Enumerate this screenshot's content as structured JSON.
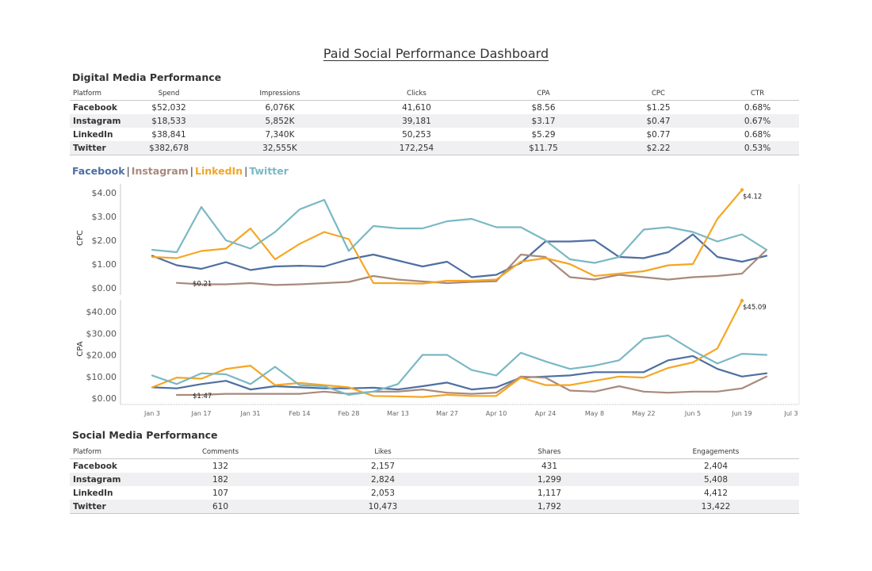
{
  "title": "Paid Social Performance Dashboard",
  "digital_media": {
    "title": "Digital Media Performance",
    "columns": [
      "Platform",
      "Spend",
      "Impressions",
      "Clicks",
      "CPA",
      "CPC",
      "CTR"
    ],
    "rows": [
      [
        "Facebook",
        "$52,032",
        "6,076K",
        "41,610",
        "$8.56",
        "$1.25",
        "0.68%"
      ],
      [
        "Instagram",
        "$18,533",
        "5,852K",
        "39,181",
        "$3.17",
        "$0.47",
        "0.67%"
      ],
      [
        "LinkedIn",
        "$38,841",
        "7,340K",
        "50,253",
        "$5.29",
        "$0.77",
        "0.68%"
      ],
      [
        "Twitter",
        "$382,678",
        "32,555K",
        "172,254",
        "$11.75",
        "$2.22",
        "0.53%"
      ]
    ]
  },
  "legend": [
    {
      "name": "Facebook",
      "color": "#4e6fa0"
    },
    {
      "name": "Instagram",
      "color": "#a88a7c"
    },
    {
      "name": "LinkedIn",
      "color": "#f5a623"
    },
    {
      "name": "Twitter",
      "color": "#7ab8c4"
    }
  ],
  "legend_separator": "|",
  "chart_data": [
    {
      "type": "line",
      "title": "CPC",
      "ylabel": "CPC",
      "ylim": [
        0,
        4
      ],
      "yticks": [
        "$0.00",
        "$1.00",
        "$2.00",
        "$3.00",
        "$4.00"
      ],
      "ytick_values": [
        0,
        1,
        2,
        3,
        4
      ],
      "x": [
        "Jan 3",
        "Jan 10",
        "Jan 17",
        "Jan 24",
        "Jan 31",
        "Feb 7",
        "Feb 14",
        "Feb 21",
        "Feb 28",
        "Mar 6",
        "Mar 13",
        "Mar 20",
        "Mar 27",
        "Apr 3",
        "Apr 10",
        "Apr 17",
        "Apr 24",
        "May 1",
        "May 8",
        "May 15",
        "May 22",
        "May 29",
        "Jun 5",
        "Jun 12",
        "Jun 19",
        "Jun 26"
      ],
      "series": [
        {
          "name": "Facebook",
          "values": [
            1.35,
            0.95,
            0.8,
            1.08,
            0.75,
            0.9,
            0.93,
            0.9,
            1.2,
            1.4,
            1.15,
            0.9,
            1.1,
            0.45,
            0.55,
            1.05,
            1.95,
            1.95,
            2.0,
            1.3,
            1.25,
            1.5,
            2.25,
            1.3,
            1.1,
            1.35
          ]
        },
        {
          "name": "Instagram",
          "values": [
            null,
            0.21,
            0.15,
            0.15,
            0.2,
            0.12,
            0.15,
            0.2,
            0.25,
            0.5,
            0.35,
            0.27,
            0.2,
            0.25,
            0.28,
            1.4,
            1.3,
            0.45,
            0.35,
            0.55,
            0.45,
            0.35,
            0.45,
            0.5,
            0.6,
            1.6
          ]
        },
        {
          "name": "LinkedIn",
          "values": [
            1.3,
            1.25,
            1.55,
            1.65,
            2.5,
            1.2,
            1.85,
            2.35,
            2.05,
            0.2,
            0.2,
            0.18,
            0.3,
            0.3,
            0.35,
            1.1,
            1.25,
            1.0,
            0.5,
            0.6,
            0.7,
            0.95,
            1.0,
            2.9,
            4.12,
            null
          ]
        },
        {
          "name": "Twitter",
          "values": [
            1.6,
            1.5,
            3.4,
            2.0,
            1.65,
            2.35,
            3.3,
            3.7,
            1.55,
            2.6,
            2.5,
            2.5,
            2.8,
            2.9,
            2.55,
            2.55,
            2.0,
            1.2,
            1.05,
            1.3,
            2.45,
            2.55,
            2.35,
            1.95,
            2.25,
            1.6
          ]
        }
      ],
      "annotations": [
        {
          "series": "Instagram",
          "point": "Jan 10",
          "label": "$0.21"
        },
        {
          "series": "LinkedIn",
          "point": "Jun 19",
          "label": "$4.12"
        }
      ]
    },
    {
      "type": "line",
      "title": "CPA",
      "ylabel": "CPA",
      "ylim": [
        0,
        45
      ],
      "yticks": [
        "$0.00",
        "$10.00",
        "$20.00",
        "$30.00",
        "$40.00"
      ],
      "ytick_values": [
        0,
        10,
        20,
        30,
        40
      ],
      "x": [
        "Jan 3",
        "Jan 10",
        "Jan 17",
        "Jan 24",
        "Jan 31",
        "Feb 7",
        "Feb 14",
        "Feb 21",
        "Feb 28",
        "Mar 6",
        "Mar 13",
        "Mar 20",
        "Mar 27",
        "Apr 3",
        "Apr 10",
        "Apr 17",
        "Apr 24",
        "May 1",
        "May 8",
        "May 15",
        "May 22",
        "May 29",
        "Jun 5",
        "Jun 12",
        "Jun 19",
        "Jun 26"
      ],
      "series": [
        {
          "name": "Facebook",
          "values": [
            5.0,
            4.5,
            6.5,
            8.0,
            4.0,
            5.5,
            5.0,
            4.5,
            4.5,
            4.8,
            4.0,
            5.5,
            7.2,
            4.0,
            5.0,
            9.5,
            10.0,
            10.5,
            12.0,
            12.0,
            12.0,
            17.5,
            19.5,
            13.5,
            10.0,
            11.5
          ]
        },
        {
          "name": "Instagram",
          "values": [
            null,
            1.47,
            1.5,
            2.0,
            2.0,
            2.0,
            2.0,
            3.0,
            2.0,
            3.0,
            3.0,
            4.0,
            2.5,
            2.0,
            2.5,
            10.0,
            9.5,
            3.5,
            3.0,
            5.5,
            3.0,
            2.5,
            3.0,
            3.0,
            4.5,
            10.0
          ]
        },
        {
          "name": "LinkedIn",
          "values": [
            5.0,
            9.5,
            9.0,
            13.5,
            15.0,
            6.0,
            7.0,
            6.0,
            5.0,
            1.0,
            0.8,
            0.5,
            1.5,
            1.0,
            1.0,
            9.5,
            6.0,
            6.0,
            8.0,
            10.0,
            9.5,
            14.0,
            16.5,
            23.0,
            45.09,
            null
          ]
        },
        {
          "name": "Twitter",
          "values": [
            10.5,
            6.5,
            11.5,
            11.0,
            6.5,
            14.5,
            6.0,
            5.5,
            1.5,
            3.0,
            6.5,
            20.0,
            20.0,
            13.0,
            10.5,
            21.0,
            17.0,
            13.5,
            15.0,
            17.5,
            27.5,
            29.0,
            22.0,
            16.0,
            20.5,
            20.0
          ]
        }
      ],
      "annotations": [
        {
          "series": "Instagram",
          "point": "Jan 10",
          "label": "$1.47"
        },
        {
          "series": "LinkedIn",
          "point": "Jun 19",
          "label": "$45.09"
        }
      ]
    }
  ],
  "x_axis_ticks": [
    "Jan 3",
    "Jan 17",
    "Jan 31",
    "Feb 14",
    "Feb 28",
    "Mar 13",
    "Mar 27",
    "Apr 10",
    "Apr 24",
    "May 8",
    "May 22",
    "Jun 5",
    "Jun 19",
    "Jul 3"
  ],
  "social_media": {
    "title": "Social Media Performance",
    "columns": [
      "Platform",
      "Comments",
      "Likes",
      "Shares",
      "Engagements"
    ],
    "rows": [
      [
        "Facebook",
        "132",
        "2,157",
        "431",
        "2,404"
      ],
      [
        "Instagram",
        "182",
        "2,824",
        "1,299",
        "5,408"
      ],
      [
        "LinkedIn",
        "107",
        "2,053",
        "1,117",
        "4,412"
      ],
      [
        "Twitter",
        "610",
        "10,473",
        "1,792",
        "13,422"
      ]
    ]
  }
}
